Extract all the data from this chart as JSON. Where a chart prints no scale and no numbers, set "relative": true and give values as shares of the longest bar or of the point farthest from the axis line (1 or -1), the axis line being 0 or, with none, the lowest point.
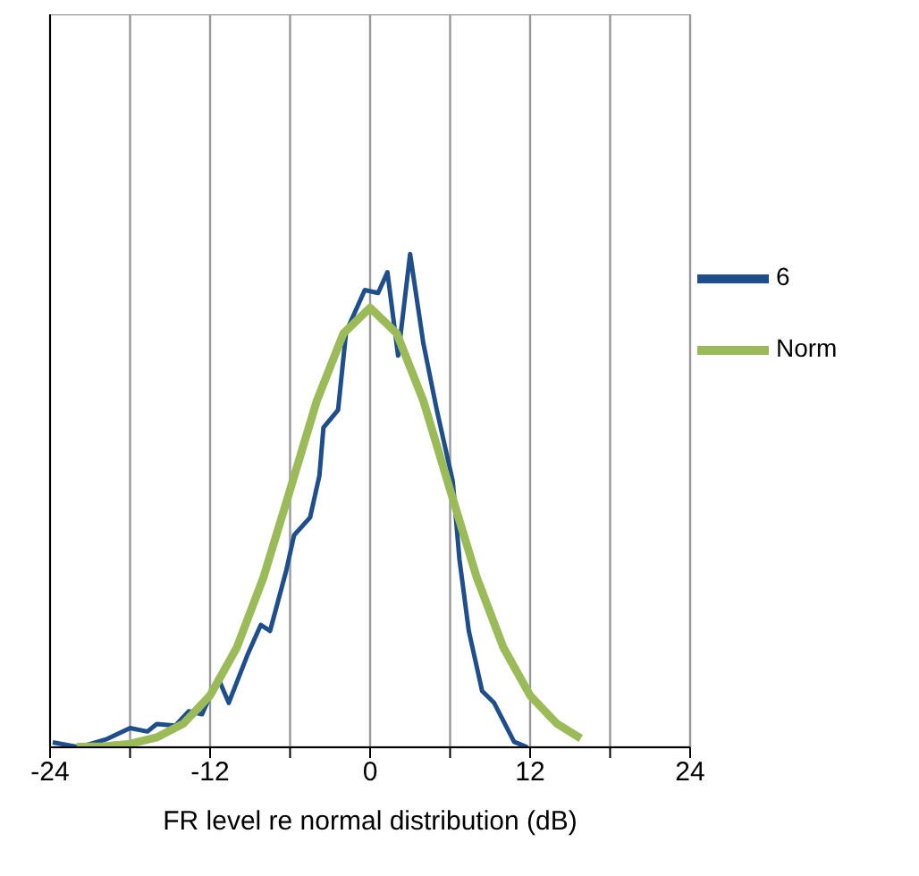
{
  "chart_data": {
    "type": "line",
    "xlabel": "FR level re normal distribution (dB)",
    "relative": true,
    "xlim": [
      -24,
      24
    ],
    "xticks": [
      -24,
      {
        "value": -18,
        "label": null
      },
      -12,
      {
        "value": -6,
        "label": null
      },
      0,
      {
        "value": 6,
        "label": null
      },
      12,
      {
        "value": 18,
        "label": null
      },
      24
    ],
    "grid": true,
    "legend": "right",
    "marker": "none",
    "line_style": "solid",
    "series": [
      {
        "name": "6",
        "color": "#1f4e8c",
        "x": [
          -23.8,
          -21.8,
          -19.7,
          -18,
          -16.7,
          -16,
          -14.6,
          -13.6,
          -12.6,
          -11.4,
          -10.6,
          -9.2,
          -8.2,
          -7.5,
          -6.3,
          -5.7,
          -4.5,
          -3.8,
          -3.5,
          -2.4,
          -1.8,
          -0.4,
          0.6,
          1.3,
          2.1,
          3,
          4,
          5,
          6.2,
          6.7,
          7.4,
          8.4,
          9.3,
          10.8,
          11.8
        ],
        "values": [
          0.01,
          0,
          0.017,
          0.039,
          0.032,
          0.047,
          0.044,
          0.073,
          0.067,
          0.141,
          0.09,
          0.187,
          0.248,
          0.236,
          0.357,
          0.43,
          0.466,
          0.551,
          0.648,
          0.684,
          0.842,
          0.927,
          0.921,
          0.963,
          0.794,
          1,
          0.818,
          0.684,
          0.539,
          0.381,
          0.236,
          0.114,
          0.09,
          0.011,
          0
        ]
      },
      {
        "name": "Norm",
        "color": "#9bbb59",
        "x": [
          -22,
          -20,
          -18,
          -16,
          -14,
          -12,
          -10,
          -8,
          -6,
          -4,
          -2,
          0,
          2,
          4,
          6,
          8,
          10,
          12,
          14,
          15.8
        ],
        "values": [
          0.001,
          0.002,
          0.007,
          0.02,
          0.048,
          0.105,
          0.202,
          0.344,
          0.522,
          0.702,
          0.839,
          0.891,
          0.839,
          0.702,
          0.522,
          0.344,
          0.202,
          0.105,
          0.048,
          0.018
        ]
      }
    ]
  }
}
